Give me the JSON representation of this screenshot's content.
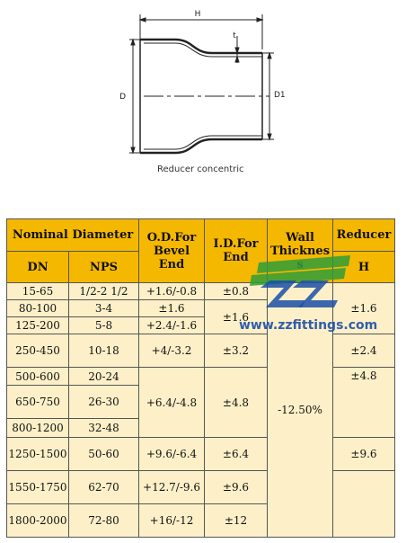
{
  "drawing": {
    "caption": "Reducer concentric",
    "dim_h": "H",
    "dim_t": "t",
    "dim_d": "D",
    "dim_d1": "D1"
  },
  "table": {
    "headers": {
      "nominal_diameter": "Nominal Diameter",
      "od": "O.D.For Bevel End",
      "id": "I.D.For End",
      "wall": "Wall Thicknes s",
      "reducer": "Reducer",
      "dn": "DN",
      "nps": "NPS",
      "h": "H"
    },
    "rows": [
      {
        "dn": "15-65",
        "nps": "1/2-2 1/2"
      },
      {
        "dn": "80-100",
        "nps": "3-4"
      },
      {
        "dn": "125-200",
        "nps": "5-8"
      },
      {
        "dn": "250-450",
        "nps": "10-18"
      },
      {
        "dn": "500-600",
        "nps": "20-24"
      },
      {
        "dn": "650-750",
        "nps": "26-30"
      },
      {
        "dn": "800-1200",
        "nps": "32-48"
      },
      {
        "dn": "1250-1500",
        "nps": "50-60"
      },
      {
        "dn": "1550-1750",
        "nps": "62-70"
      },
      {
        "dn": "1800-2000",
        "nps": "72-80"
      }
    ],
    "od": [
      "+1.6/-0.8",
      "±1.6",
      "+2.4/-1.6",
      "+4/-3.2",
      "+6.4/-4.8",
      "+9.6/-6.4",
      "+12.7/-9.6",
      "+16/-12"
    ],
    "id": [
      "±0.8",
      "±1.6",
      "±3.2",
      "±4.8",
      "±6.4",
      "±9.6",
      "±12"
    ],
    "wall": "-12.50%",
    "h": [
      "±1.6",
      "±2.4",
      "±4.8",
      "±9.6"
    ]
  },
  "watermark": {
    "url": "www.zzfittings.com",
    "colors": {
      "blue": "#1a4fa8",
      "green": "#2e9c3a",
      "text": "#1a4fa8"
    }
  }
}
